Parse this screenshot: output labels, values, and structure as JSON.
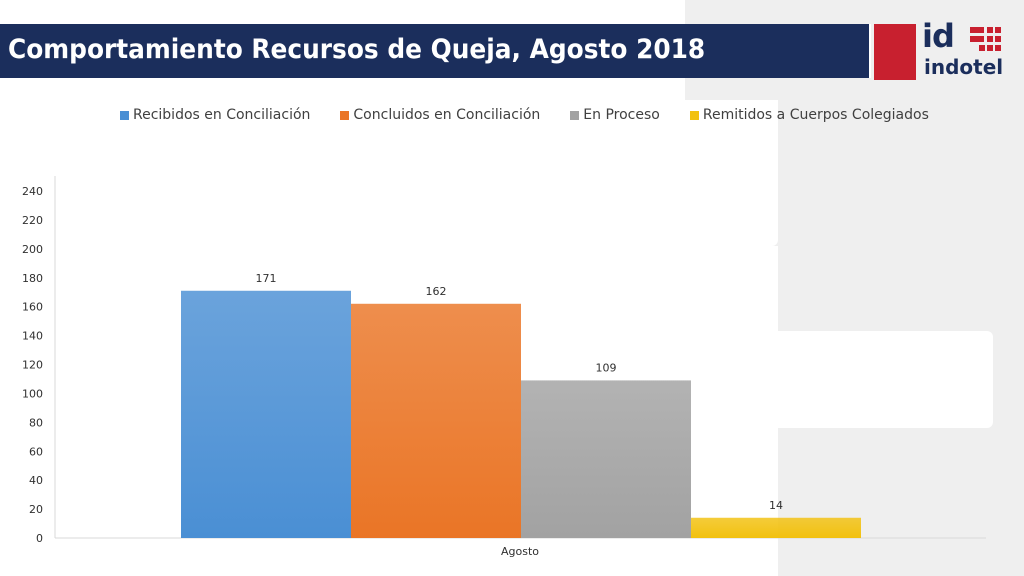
{
  "header": {
    "title": "Comportamiento Recursos de Queja, Agosto 2018",
    "logo_mark": "id",
    "logo_word": "indotel"
  },
  "colors": {
    "title_bar": "#1b2e5c",
    "logo_red": "#c8202f"
  },
  "chart_data": {
    "type": "bar",
    "title": "",
    "categories": [
      "Agosto"
    ],
    "series": [
      {
        "name": "Recibidos en Conciliación",
        "values": [
          171
        ],
        "color": "#4a8fd4"
      },
      {
        "name": "Concluidos en Conciliación",
        "values": [
          162
        ],
        "color": "#ea7526"
      },
      {
        "name": "En Proceso",
        "values": [
          109
        ],
        "color": "#a2a2a2"
      },
      {
        "name": "Remitidos a Cuerpos Colegiados",
        "values": [
          14
        ],
        "color": "#f2c10f"
      }
    ],
    "y_ticks": [
      "0",
      "20",
      "40",
      "60",
      "80",
      "100",
      "120",
      "140",
      "160",
      "180",
      "200",
      "220",
      "240"
    ],
    "ylim": [
      0,
      240
    ],
    "legend": "top",
    "grid": false,
    "data_labels": true
  }
}
